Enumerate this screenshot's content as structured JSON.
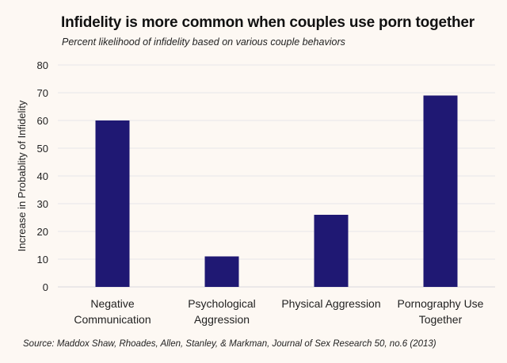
{
  "chart_data": {
    "type": "bar",
    "title": "Infidelity is more common when couples use porn together",
    "subtitle": "Percent likelihood of infidelity based on various couple behaviors",
    "xlabel": "",
    "ylabel": "Increase in Probablity of Infidelity",
    "categories": [
      [
        "Negative",
        "Communication"
      ],
      [
        "Psychological",
        "Aggression"
      ],
      [
        "Physical Aggression"
      ],
      [
        "Pornography Use",
        "Together"
      ]
    ],
    "values": [
      60,
      11,
      26,
      69
    ],
    "ylim": [
      0,
      80
    ],
    "yticks": [
      "0",
      "10",
      "20",
      "30",
      "40",
      "50",
      "60",
      "70",
      "80"
    ],
    "grid": true,
    "bar_color": "#1f1873",
    "source": "Source: Maddox Shaw, Rhoades, Allen, Stanley, & Markman, Journal of Sex Research 50, no.6 (2013)"
  }
}
